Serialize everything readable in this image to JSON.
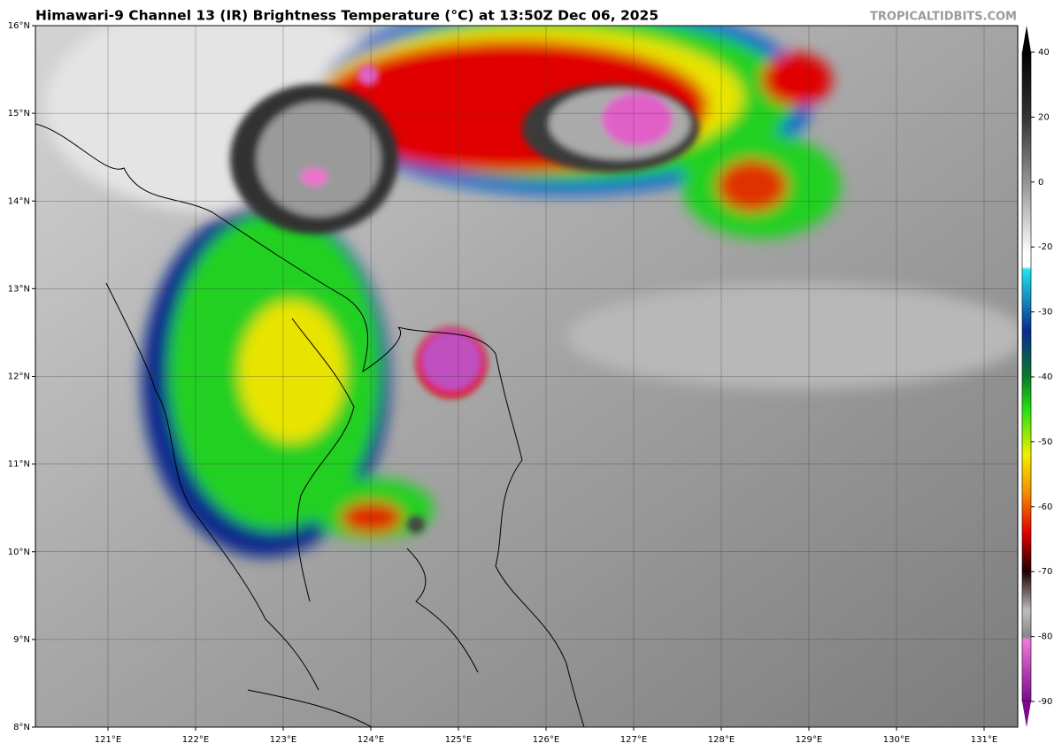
{
  "header": {
    "title": "Himawari-9 Channel 13 (IR) Brightness Temperature (°C) at 13:50Z Dec 06, 2025",
    "source": "TROPICALTIDBITS.COM"
  },
  "map": {
    "lat_ticks": [
      {
        "value": 16,
        "label": "16°N"
      },
      {
        "value": 15,
        "label": "15°N"
      },
      {
        "value": 14,
        "label": "14°N"
      },
      {
        "value": 13,
        "label": "13°N"
      },
      {
        "value": 12,
        "label": "12°N"
      },
      {
        "value": 11,
        "label": "11°N"
      },
      {
        "value": 10,
        "label": "10°N"
      },
      {
        "value": 9,
        "label": "9°N"
      },
      {
        "value": 8,
        "label": "8°N"
      }
    ],
    "lon_ticks": [
      {
        "value": 121,
        "label": "121°E"
      },
      {
        "value": 122,
        "label": "122°E"
      },
      {
        "value": 123,
        "label": "123°E"
      },
      {
        "value": 124,
        "label": "124°E"
      },
      {
        "value": 125,
        "label": "125°E"
      },
      {
        "value": 126,
        "label": "126°E"
      },
      {
        "value": 127,
        "label": "127°E"
      },
      {
        "value": 128,
        "label": "128°E"
      },
      {
        "value": 129,
        "label": "129°E"
      },
      {
        "value": 130,
        "label": "130°E"
      },
      {
        "value": 131,
        "label": "131°E"
      }
    ]
  },
  "colorbar": {
    "ticks": [
      40,
      20,
      0,
      -20,
      -30,
      -40,
      -50,
      -60,
      -70,
      -80,
      -90
    ]
  }
}
